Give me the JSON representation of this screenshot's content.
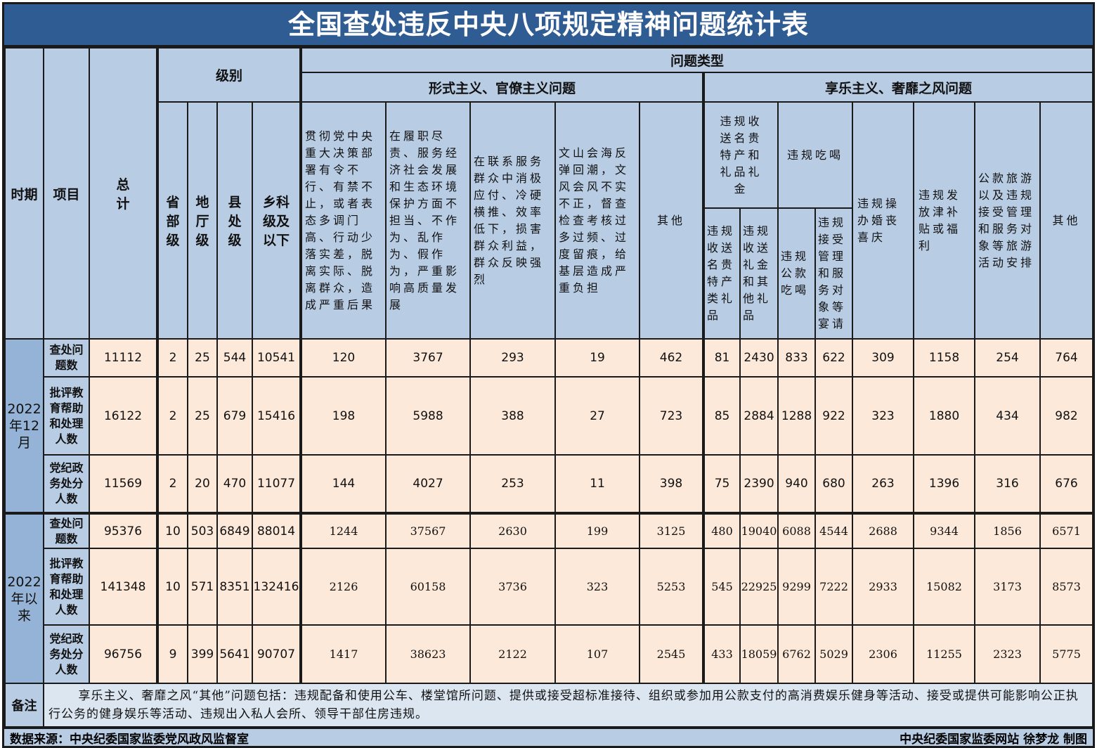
{
  "title": "全国查处违反中央八项规定精神问题统计表",
  "header": {
    "period": "时期",
    "item": "项目",
    "total": "总计",
    "level": "级别",
    "levels": [
      "省部级",
      "地厅级",
      "县处级",
      "乡科级及以下"
    ],
    "problem_type": "问题类型",
    "formalism": "形式主义、官僚主义问题",
    "formalism_cols": [
      "贯彻党中央重大决策部署有令不行、有禁不止，或者表态多调门高、行动少落实差，脱离实际、脱离群众，造成严重后果",
      "在履职尽责、服务经济社会发展和生态环境保护方面不担当、不作为、乱作为、假作为，严重影响高质量发展",
      "在联系服务群众中消极应付、冷硬横推、效率低下，损害群众利益，群众反映强烈",
      "文山会海反弹回潮，文风会风不实不正，督查检查考核过多过频、过度留痕，给基层造成严重负担",
      "其他"
    ],
    "hedonism": "享乐主义、奢靡之风问题",
    "gifts": "违规收送名贵特产和礼品礼金",
    "gifts_sub": [
      "违规收送名贵特产类礼品",
      "违规收送礼金和其他礼品"
    ],
    "dining": "违规吃喝",
    "dining_sub": [
      "违规公款吃喝",
      "违规接受管理和服务对象等宴请"
    ],
    "hedonism_cols": [
      "违规操办婚丧喜庆",
      "违规发放津补贴或福利",
      "公款旅游以及违规接受管理和服务对象等旅游活动安排",
      "其他"
    ]
  },
  "periods": [
    {
      "label": "2022年12月",
      "rows": [
        {
          "item": "查处问题数",
          "values": [
            "11112",
            "2",
            "25",
            "544",
            "10541",
            "120",
            "3767",
            "293",
            "19",
            "462",
            "81",
            "2430",
            "833",
            "622",
            "309",
            "1158",
            "254",
            "764"
          ]
        },
        {
          "item": "批评教育帮助和处理人数",
          "values": [
            "16122",
            "2",
            "25",
            "679",
            "15416",
            "198",
            "5988",
            "388",
            "27",
            "723",
            "85",
            "2884",
            "1288",
            "922",
            "323",
            "1880",
            "434",
            "982"
          ]
        },
        {
          "item": "党纪政务处分人数",
          "values": [
            "11569",
            "2",
            "20",
            "470",
            "11077",
            "144",
            "4027",
            "253",
            "11",
            "398",
            "75",
            "2390",
            "940",
            "680",
            "263",
            "1396",
            "316",
            "676"
          ]
        }
      ]
    },
    {
      "label": "2022年以来",
      "rows": [
        {
          "item": "查处问题数",
          "values": [
            "95376",
            "10",
            "503",
            "6849",
            "88014",
            "1244",
            "37567",
            "2630",
            "199",
            "3125",
            "480",
            "19040",
            "6088",
            "4544",
            "2688",
            "9344",
            "1856",
            "6571"
          ]
        },
        {
          "item": "批评教育帮助和处理人数",
          "values": [
            "141348",
            "10",
            "571",
            "8351",
            "132416",
            "2126",
            "60158",
            "3736",
            "323",
            "5253",
            "545",
            "22925",
            "9299",
            "7222",
            "2933",
            "15082",
            "3173",
            "8573"
          ]
        },
        {
          "item": "党纪政务处分人数",
          "values": [
            "96756",
            "9",
            "399",
            "5641",
            "90707",
            "1417",
            "38623",
            "2122",
            "107",
            "2545",
            "433",
            "18059",
            "6762",
            "5029",
            "2306",
            "11255",
            "2323",
            "5775"
          ]
        }
      ]
    }
  ],
  "note": {
    "label": "备注",
    "text": "享乐主义、奢靡之风“其他”问题包括：违规配备和使用公车、楼堂馆所问题、提供或接受超标准接待、组织或参加用公款支付的高消费娱乐健身等活动、接受或提供可能影响公正执行公务的健身娱乐等活动、违规出入私人会所、领导干部住房违规。"
  },
  "footer": {
    "source": "数据来源：中央纪委国家监委党风政风监督室",
    "credit": "中央纪委国家监委网站 徐梦龙 制图"
  },
  "colors": {
    "title_bg": "#2f5c92",
    "header_bg": "#b8cce4",
    "period_bg": "#95b3d7",
    "cell_bg": "#fde9d9"
  }
}
